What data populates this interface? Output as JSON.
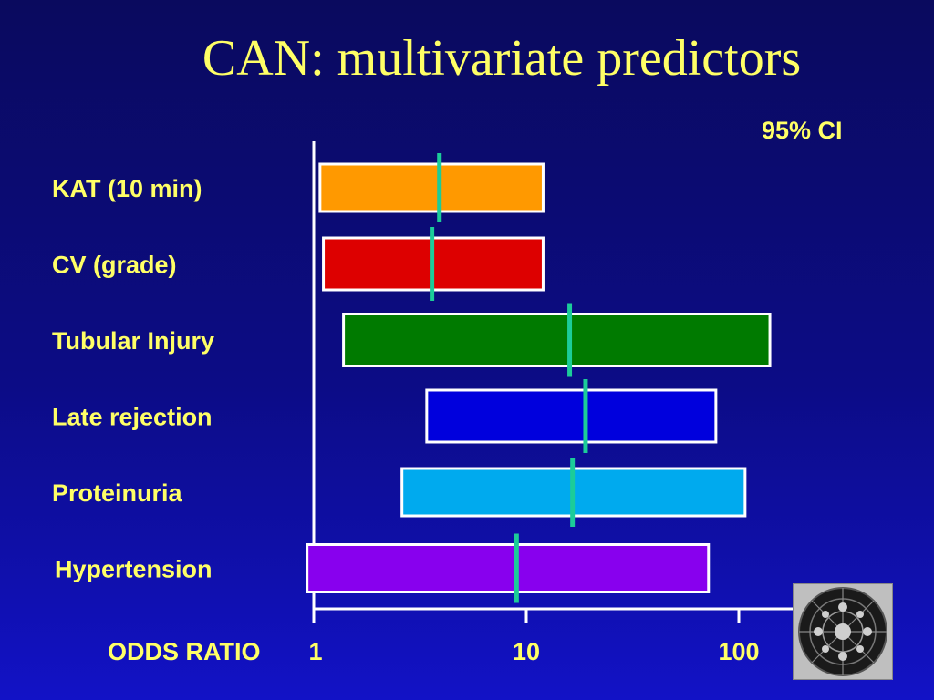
{
  "slide": {
    "title": "CAN: multivariate predictors",
    "logo_icon": "circle-limit-tessellation-icon"
  },
  "chart_data": {
    "type": "bar",
    "orientation": "horizontal",
    "scale": "log",
    "title": "CAN: multivariate predictors",
    "xlabel": "ODDS RATIO",
    "ci_label": "95% CI",
    "xlim": [
      1,
      160
    ],
    "xticks": [
      1,
      10,
      100
    ],
    "xtick_labels": [
      "1",
      "10",
      "100"
    ],
    "grid": false,
    "categories": [
      "KAT (10 min)",
      "CV (grade)",
      "Tubular Injury",
      "Late rejection",
      "Proteinuria",
      "Hypertension"
    ],
    "ci_low": [
      1.07,
      1.11,
      1.38,
      3.4,
      2.6,
      0.93
    ],
    "ci_high": [
      12.0,
      12.0,
      140,
      78,
      107,
      72
    ],
    "estimate": [
      3.9,
      3.6,
      16,
      19,
      16.5,
      9.0
    ],
    "colors": [
      "#ff9900",
      "#dd0000",
      "#007a00",
      "#0000dd",
      "#00aaee",
      "#8800ee"
    ],
    "estimate_color": "#1ccc99"
  }
}
